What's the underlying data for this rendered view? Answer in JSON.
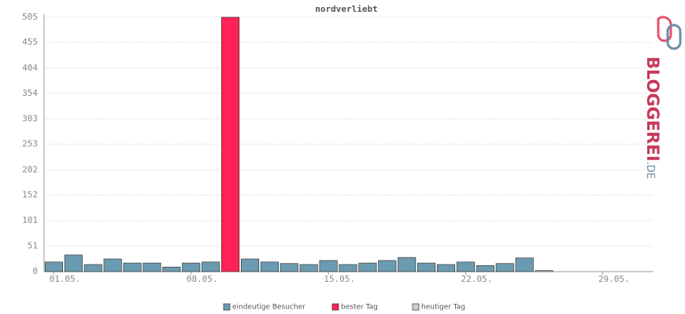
{
  "chart_data": {
    "type": "bar",
    "title": "nordverliebt",
    "categories": [
      "01.05.",
      null,
      null,
      null,
      null,
      null,
      null,
      "08.05.",
      null,
      null,
      null,
      null,
      null,
      null,
      "15.05.",
      null,
      null,
      null,
      null,
      null,
      null,
      "22.05.",
      null,
      null,
      null,
      null,
      null,
      null,
      "29.05.",
      null,
      null
    ],
    "series": [
      {
        "name": "eindeutige Besucher",
        "color": "#6b9bb0",
        "values": [
          19,
          33,
          14,
          25,
          17,
          17,
          9,
          17,
          19,
          null,
          25,
          19,
          16,
          14,
          22,
          14,
          17,
          22,
          28,
          17,
          14,
          19,
          12,
          16,
          27,
          null,
          null,
          null,
          null,
          null,
          null
        ]
      },
      {
        "name": "bester Tag",
        "color": "#ff2255",
        "values": [
          null,
          null,
          null,
          null,
          null,
          null,
          null,
          null,
          null,
          505,
          null,
          null,
          null,
          null,
          null,
          null,
          null,
          null,
          null,
          null,
          null,
          null,
          null,
          null,
          null,
          null,
          null,
          null,
          null,
          null,
          null
        ]
      },
      {
        "name": "heutiger Tag",
        "color": "#cccccc",
        "values": [
          null,
          null,
          null,
          null,
          null,
          null,
          null,
          null,
          null,
          null,
          null,
          null,
          null,
          null,
          null,
          null,
          null,
          null,
          null,
          null,
          null,
          null,
          null,
          null,
          null,
          2,
          null,
          null,
          null,
          null,
          null
        ]
      }
    ],
    "ylim": [
      0,
      505
    ],
    "yticks": [
      0,
      51,
      101,
      152,
      202,
      253,
      303,
      354,
      404,
      455,
      505
    ],
    "grid": true
  },
  "logo": {
    "name": "BLOGGEREI",
    "suffix": ".DE"
  }
}
